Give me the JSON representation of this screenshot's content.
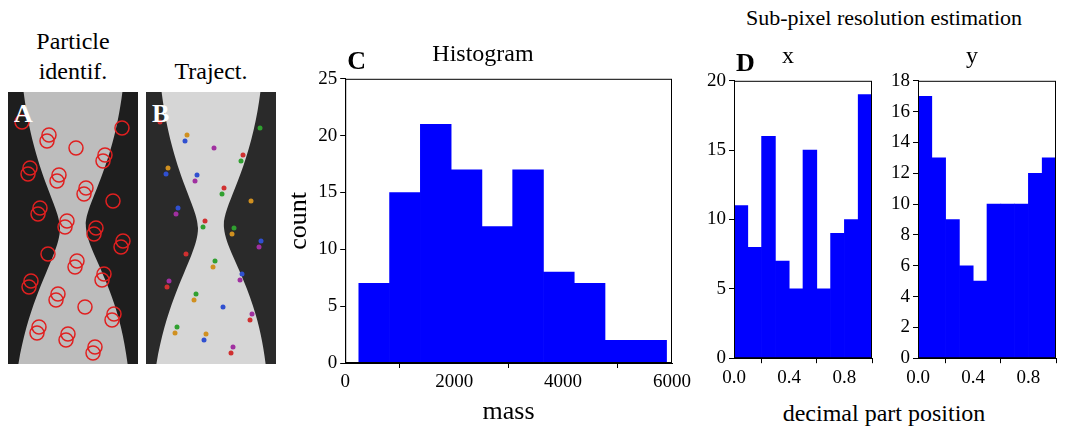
{
  "image_panels": [
    {
      "letter": "A",
      "title": "Particle identif."
    },
    {
      "letter": "B",
      "title": "Traject."
    }
  ],
  "group": {
    "title": "Sub-pixel resolution estimation",
    "x_label": "decimal part position"
  },
  "chart_data": [
    {
      "type": "histogram",
      "letter": "C",
      "title": "Histogram",
      "x_label": "mass",
      "y_label": "count",
      "bins": [
        250,
        815,
        1380,
        1945,
        2510,
        3075,
        3640,
        4205,
        4770,
        5335,
        5900
      ],
      "counts": [
        7,
        15,
        21,
        17,
        12,
        17,
        8,
        7,
        2,
        2
      ],
      "color": "#0000ff",
      "xlim": [
        0,
        6000
      ],
      "xticks": [
        0,
        2000,
        4000,
        6000
      ],
      "ylim": [
        0,
        25
      ],
      "yticks": [
        0,
        5,
        10,
        15,
        20,
        25
      ],
      "grid": false
    },
    {
      "type": "histogram",
      "letter": "D",
      "title": "x",
      "bins": [
        0,
        0.1,
        0.2,
        0.3,
        0.4,
        0.5,
        0.6,
        0.7,
        0.8,
        0.9,
        1.0
      ],
      "counts": [
        11,
        8,
        16,
        7,
        5,
        15,
        5,
        9,
        10,
        19
      ],
      "color": "#0000ff",
      "xlim": [
        0,
        1
      ],
      "xticks": [
        {
          "value": 0,
          "label": "0.0"
        },
        {
          "value": 0.4,
          "label": "0.4"
        },
        {
          "value": 0.8,
          "label": "0.8"
        }
      ],
      "ylim": [
        0,
        20
      ],
      "yticks": [
        0,
        5,
        10,
        15,
        20
      ],
      "grid": false
    },
    {
      "type": "histogram",
      "title": "y",
      "bins": [
        0,
        0.1,
        0.2,
        0.3,
        0.4,
        0.5,
        0.6,
        0.7,
        0.8,
        0.9,
        1.0
      ],
      "counts": [
        17,
        13,
        9,
        6,
        5,
        10,
        10,
        10,
        12,
        13
      ],
      "color": "#0000ff",
      "xlim": [
        0,
        1
      ],
      "xticks": [
        {
          "value": 0,
          "label": "0.0"
        },
        {
          "value": 0.4,
          "label": "0.4"
        },
        {
          "value": 0.8,
          "label": "0.8"
        }
      ],
      "ylim": [
        0,
        18
      ],
      "yticks": [
        0,
        2,
        4,
        6,
        8,
        10,
        12,
        14,
        16,
        18
      ],
      "grid": false
    }
  ]
}
